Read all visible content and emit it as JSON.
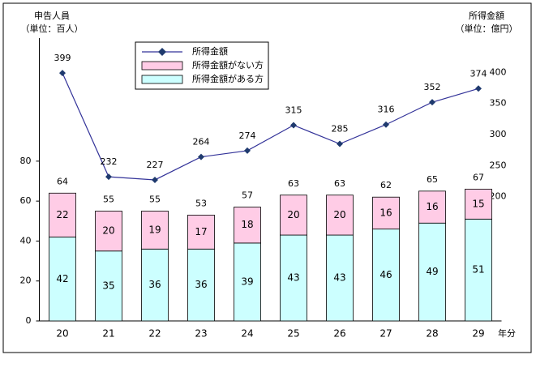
{
  "chart_data": {
    "type": "bar_line",
    "y_label": [
      "申告人員",
      "（単位：百人）"
    ],
    "y2_label": [
      "所得金額",
      "（単位：億円）"
    ],
    "x_unit": "年分",
    "categories": [
      "20",
      "21",
      "22",
      "23",
      "24",
      "25",
      "26",
      "27",
      "28",
      "29"
    ],
    "series": [
      {
        "name": "所得金額がある方",
        "color": "#ccffff",
        "values": [
          42,
          35,
          36,
          36,
          39,
          43,
          43,
          46,
          49,
          51
        ]
      },
      {
        "name": "所得金額がない方",
        "color": "#ffcce6",
        "values": [
          22,
          20,
          19,
          17,
          18,
          20,
          20,
          16,
          16,
          15
        ]
      },
      {
        "name": "所得金額",
        "color": "#333399",
        "axis": "y2",
        "values": [
          399,
          232,
          227,
          264,
          274,
          315,
          285,
          316,
          352,
          374
        ]
      }
    ],
    "totals": [
      64,
      55,
      55,
      53,
      57,
      63,
      63,
      62,
      65,
      67
    ],
    "ylim": [
      0,
      140
    ],
    "yticks": [
      0,
      20,
      40,
      60,
      80
    ],
    "y2lim": [
      0,
      450
    ],
    "y2ticks": [
      200,
      250,
      300,
      350,
      400
    ]
  }
}
